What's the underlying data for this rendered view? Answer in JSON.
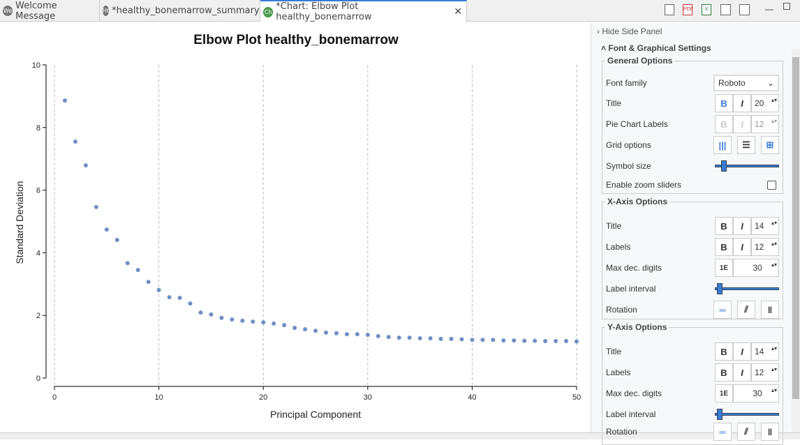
{
  "tabs": [
    {
      "icon": "We",
      "label": "Welcome Message"
    },
    {
      "icon": "Ht",
      "label": "*healthy_bonemarrow_summary"
    },
    {
      "icon": "Ch",
      "label": "*Chart: Elbow Plot healthy_bonemarrow",
      "active": true
    }
  ],
  "toolbar": {
    "icons": [
      "export-image-icon",
      "export-pdf-icon",
      "export-excel-icon",
      "save-icon",
      "save-all-icon"
    ]
  },
  "panel": {
    "hide_label": "Hide Side Panel",
    "section_title": "Font & Graphical Settings",
    "general": {
      "title": "General Options",
      "font_family_label": "Font family",
      "font_family_value": "Roboto",
      "title_label": "Title",
      "title_size": "20",
      "pie_label": "Pie Chart Labels",
      "pie_size": "12",
      "grid_label": "Grid options",
      "symbol_label": "Symbol size",
      "zoom_label": "Enable zoom sliders",
      "zoom_checked": false
    },
    "xaxis": {
      "title": "X-Axis Options",
      "title_label": "Title",
      "title_size": "14",
      "labels_label": "Labels",
      "labels_size": "12",
      "maxdec_label": "Max dec. digits",
      "maxdec_value": "30",
      "interval_label": "Label interval",
      "rotation_label": "Rotation"
    },
    "yaxis": {
      "title": "Y-Axis Options",
      "title_label": "Title",
      "title_size": "14",
      "labels_label": "Labels",
      "labels_size": "12",
      "maxdec_label": "Max dec. digits",
      "maxdec_value": "30",
      "interval_label": "Label interval",
      "rotation_label": "Rotation"
    },
    "bold": "B",
    "italic": "I",
    "sci": "1E"
  },
  "chart_data": {
    "type": "scatter",
    "title": "Elbow Plot healthy_bonemarrow",
    "xlabel": "Principal Component",
    "ylabel": "Standard Deviation",
    "xlim": [
      0,
      50
    ],
    "ylim": [
      0,
      10
    ],
    "xticks": [
      0,
      10,
      20,
      30,
      40,
      50
    ],
    "yticks": [
      0,
      2,
      4,
      6,
      8,
      10
    ],
    "grid": "vertical dashed",
    "color": "#6f8fc4",
    "x": [
      1,
      2,
      3,
      4,
      5,
      6,
      7,
      8,
      9,
      10,
      11,
      12,
      13,
      14,
      15,
      16,
      17,
      18,
      19,
      20,
      21,
      22,
      23,
      24,
      25,
      26,
      27,
      28,
      29,
      30,
      31,
      32,
      33,
      34,
      35,
      36,
      37,
      38,
      39,
      40,
      41,
      42,
      43,
      44,
      45,
      46,
      47,
      48,
      49,
      50
    ],
    "y": [
      8.86,
      7.55,
      6.79,
      5.46,
      4.74,
      4.41,
      3.67,
      3.45,
      3.07,
      2.81,
      2.58,
      2.56,
      2.38,
      2.09,
      2.03,
      1.92,
      1.87,
      1.83,
      1.8,
      1.78,
      1.74,
      1.69,
      1.6,
      1.56,
      1.51,
      1.45,
      1.43,
      1.4,
      1.4,
      1.38,
      1.34,
      1.31,
      1.29,
      1.29,
      1.27,
      1.27,
      1.25,
      1.25,
      1.24,
      1.22,
      1.22,
      1.22,
      1.2,
      1.2,
      1.19,
      1.19,
      1.18,
      1.18,
      1.18,
      1.17
    ]
  }
}
